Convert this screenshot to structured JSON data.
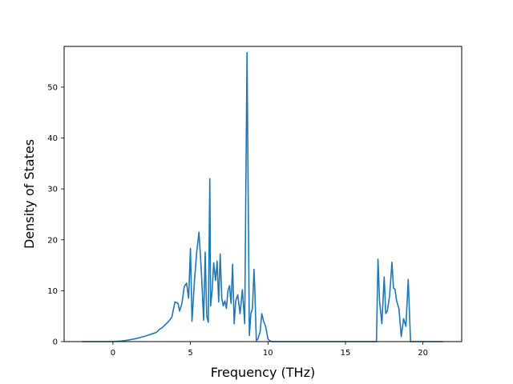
{
  "chart_data": {
    "type": "line",
    "title": "",
    "xlabel": "Frequency (THz)",
    "ylabel": "Density of States",
    "xlim": [
      -3.15,
      22.5
    ],
    "ylim": [
      0,
      58
    ],
    "xticks": [
      0,
      5,
      10,
      15,
      20
    ],
    "yticks": [
      0,
      10,
      20,
      30,
      40,
      50
    ],
    "grid": false,
    "legend": "none",
    "series": [
      {
        "color": "#1f77b4",
        "x": [
          -2.0,
          -1.0,
          0.0,
          0.5,
          1.0,
          1.5,
          2.0,
          2.3,
          2.6,
          2.8,
          3.0,
          3.2,
          3.4,
          3.6,
          3.8,
          4.0,
          4.2,
          4.3,
          4.45,
          4.6,
          4.75,
          4.88,
          5.0,
          5.1,
          5.25,
          5.4,
          5.55,
          5.7,
          5.85,
          5.95,
          6.05,
          6.15,
          6.25,
          6.3,
          6.4,
          6.5,
          6.62,
          6.72,
          6.82,
          6.92,
          7.02,
          7.12,
          7.22,
          7.32,
          7.42,
          7.52,
          7.62,
          7.72,
          7.82,
          7.92,
          8.05,
          8.2,
          8.35,
          8.5,
          8.65,
          8.8,
          8.9,
          9.0,
          9.1,
          9.15,
          9.25,
          9.35,
          9.5,
          9.6,
          9.72,
          9.85,
          10.0,
          10.15,
          10.3,
          10.45,
          10.6,
          10.75,
          11.0,
          12.0,
          13.0,
          14.0,
          15.0,
          16.0,
          17.0,
          17.1,
          17.2,
          17.35,
          17.5,
          17.6,
          17.7,
          17.85,
          18.0,
          18.1,
          18.2,
          18.3,
          18.45,
          18.6,
          18.75,
          18.9,
          19.05,
          19.2,
          19.3,
          19.4,
          19.5,
          20.0,
          21.3
        ],
        "y": [
          0,
          0,
          0,
          0.1,
          0.3,
          0.6,
          1.0,
          1.3,
          1.6,
          1.8,
          2.4,
          2.8,
          3.4,
          4.0,
          4.8,
          7.8,
          7.5,
          6.0,
          7.5,
          10.8,
          11.5,
          8.5,
          18.3,
          4.0,
          11.5,
          17.5,
          21.5,
          14.0,
          4.2,
          17.6,
          5.0,
          3.8,
          32.0,
          7.0,
          10.0,
          15.5,
          12.0,
          15.8,
          7.8,
          17.2,
          8.5,
          7.0,
          8.0,
          6.5,
          10.0,
          11.0,
          7.5,
          15.2,
          3.5,
          8.0,
          9.2,
          5.5,
          10.2,
          3.5,
          56.8,
          1.2,
          5.5,
          6.5,
          14.2,
          10.5,
          0.2,
          0.5,
          2.0,
          5.5,
          4.0,
          3.0,
          0.5,
          0.1,
          0,
          0,
          0,
          0,
          0,
          0,
          0,
          0,
          0,
          0,
          0,
          16.2,
          8.0,
          3.5,
          12.7,
          5.5,
          6.0,
          9.0,
          15.6,
          10.5,
          10.3,
          8.0,
          6.5,
          1.0,
          4.5,
          3.0,
          12.2,
          0,
          0,
          0,
          0,
          0,
          0
        ]
      }
    ]
  }
}
